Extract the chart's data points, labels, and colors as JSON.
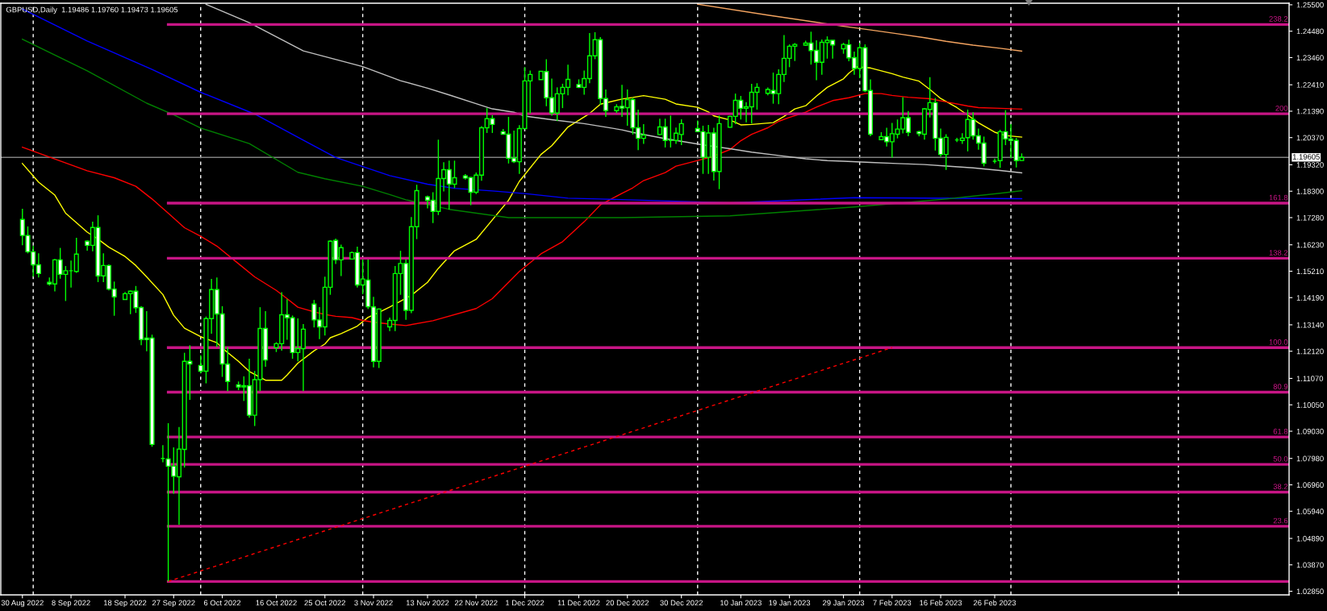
{
  "chart_data": {
    "type": "candlestick",
    "title": "GBPUSD,Daily  1.19486 1.19760 1.19473 1.19605",
    "xlim": [
      "2022-08-26T00:00",
      "2023-04-21T12:00"
    ],
    "ylim": [
      1.0271,
      1.2556
    ],
    "xticks": [
      {
        "value": "2022-08-30",
        "label": "30 Aug 2022"
      },
      {
        "value": "2022-09-08",
        "label": "8 Sep 2022"
      },
      {
        "value": "2022-09-18",
        "label": "18 Sep 2022"
      },
      {
        "value": "2022-09-27",
        "label": "27 Sep 2022"
      },
      {
        "value": "2022-10-06",
        "label": "6 Oct 2022"
      },
      {
        "value": "2022-10-16",
        "label": "16 Oct 2022"
      },
      {
        "value": "2022-10-25",
        "label": "25 Oct 2022"
      },
      {
        "value": "2022-11-03",
        "label": "3 Nov 2022"
      },
      {
        "value": "2022-11-13",
        "label": "13 Nov 2022"
      },
      {
        "value": "2022-11-22",
        "label": "22 Nov 2022"
      },
      {
        "value": "2022-12-01",
        "label": "1 Dec 2022"
      },
      {
        "value": "2022-12-11",
        "label": "11 Dec 2022"
      },
      {
        "value": "2022-12-20",
        "label": "20 Dec 2022"
      },
      {
        "value": "2022-12-30",
        "label": "30 Dec 2022"
      },
      {
        "value": "2023-01-10",
        "label": "10 Jan 2023"
      },
      {
        "value": "2023-01-19",
        "label": "19 Jan 2023"
      },
      {
        "value": "2023-01-29",
        "label": "29 Jan 2023"
      },
      {
        "value": "2023-02-07",
        "label": "7 Feb 2023"
      },
      {
        "value": "2023-02-16",
        "label": "16 Feb 2023"
      },
      {
        "value": "2023-02-26",
        "label": "26 Feb 2023"
      }
    ],
    "yticks": [
      {
        "value": 1.255,
        "label": "1.25500"
      },
      {
        "value": 1.2448,
        "label": "1.24480"
      },
      {
        "value": 1.2346,
        "label": "1.23460"
      },
      {
        "value": 1.2241,
        "label": "1.22410"
      },
      {
        "value": 1.2139,
        "label": "1.21390"
      },
      {
        "value": 1.2037,
        "label": "1.20370"
      },
      {
        "value": 1.1932,
        "label": "1.19320"
      },
      {
        "value": 1.183,
        "label": "1.18300"
      },
      {
        "value": 1.1728,
        "label": "1.17280"
      },
      {
        "value": 1.1623,
        "label": "1.16230"
      },
      {
        "value": 1.1521,
        "label": "1.15210"
      },
      {
        "value": 1.1419,
        "label": "1.14190"
      },
      {
        "value": 1.1314,
        "label": "1.13140"
      },
      {
        "value": 1.1212,
        "label": "1.12120"
      },
      {
        "value": 1.1107,
        "label": "1.11070"
      },
      {
        "value": 1.1005,
        "label": "1.10050"
      },
      {
        "value": 1.0903,
        "label": "1.09030"
      },
      {
        "value": 1.0798,
        "label": "1.07980"
      },
      {
        "value": 1.0696,
        "label": "1.06960"
      },
      {
        "value": 1.0594,
        "label": "1.05940"
      },
      {
        "value": 1.0489,
        "label": "1.04890"
      },
      {
        "value": 1.0387,
        "label": "1.03870"
      },
      {
        "value": 1.0285,
        "label": "1.02850"
      }
    ],
    "color": "#00ff00",
    "x": [
      "2022-08-30",
      "2022-08-31",
      "2022-09-01",
      "2022-09-02",
      "2022-09-04",
      "2022-09-05",
      "2022-09-06",
      "2022-09-07",
      "2022-09-08",
      "2022-09-09",
      "2022-09-11",
      "2022-09-12",
      "2022-09-13",
      "2022-09-14",
      "2022-09-15",
      "2022-09-16",
      "2022-09-18",
      "2022-09-19",
      "2022-09-20",
      "2022-09-21",
      "2022-09-22",
      "2022-09-23",
      "2022-09-25",
      "2022-09-26",
      "2022-09-27",
      "2022-09-28",
      "2022-09-29",
      "2022-09-30",
      "2022-10-02",
      "2022-10-03",
      "2022-10-04",
      "2022-10-05",
      "2022-10-06",
      "2022-10-07",
      "2022-10-09",
      "2022-10-10",
      "2022-10-11",
      "2022-10-12",
      "2022-10-13",
      "2022-10-14",
      "2022-10-16",
      "2022-10-17",
      "2022-10-18",
      "2022-10-19",
      "2022-10-20",
      "2022-10-21",
      "2022-10-23",
      "2022-10-24",
      "2022-10-25",
      "2022-10-26",
      "2022-10-27",
      "2022-10-28",
      "2022-10-30",
      "2022-10-31",
      "2022-11-01",
      "2022-11-02",
      "2022-11-03",
      "2022-11-04",
      "2022-11-06",
      "2022-11-07",
      "2022-11-08",
      "2022-11-09",
      "2022-11-10",
      "2022-11-11",
      "2022-11-13",
      "2022-11-14",
      "2022-11-15",
      "2022-11-16",
      "2022-11-17",
      "2022-11-18",
      "2022-11-20",
      "2022-11-21",
      "2022-11-22",
      "2022-11-23",
      "2022-11-24",
      "2022-11-25",
      "2022-11-27",
      "2022-11-28",
      "2022-11-29",
      "2022-11-30",
      "2022-12-01",
      "2022-12-02",
      "2022-12-04",
      "2022-12-05",
      "2022-12-06",
      "2022-12-07",
      "2022-12-08",
      "2022-12-09",
      "2022-12-11",
      "2022-12-12",
      "2022-12-13",
      "2022-12-14",
      "2022-12-15",
      "2022-12-16",
      "2022-12-18",
      "2022-12-19",
      "2022-12-20",
      "2022-12-21",
      "2022-12-22",
      "2022-12-23",
      "2022-12-26",
      "2022-12-27",
      "2022-12-28",
      "2022-12-29",
      "2022-12-30",
      "2023-01-02",
      "2023-01-03",
      "2023-01-04",
      "2023-01-05",
      "2023-01-06",
      "2023-01-08",
      "2023-01-09",
      "2023-01-10",
      "2023-01-11",
      "2023-01-12",
      "2023-01-13",
      "2023-01-15",
      "2023-01-16",
      "2023-01-17",
      "2023-01-18",
      "2023-01-19",
      "2023-01-20",
      "2023-01-22",
      "2023-01-23",
      "2023-01-24",
      "2023-01-25",
      "2023-01-26",
      "2023-01-27",
      "2023-01-29",
      "2023-01-30",
      "2023-01-31",
      "2023-02-01",
      "2023-02-02",
      "2023-02-03",
      "2023-02-05",
      "2023-02-06",
      "2023-02-07",
      "2023-02-08",
      "2023-02-09",
      "2023-02-10",
      "2023-02-12",
      "2023-02-13",
      "2023-02-14",
      "2023-02-15",
      "2023-02-16",
      "2023-02-17",
      "2023-02-19",
      "2023-02-20",
      "2023-02-21",
      "2023-02-22",
      "2023-02-23",
      "2023-02-24",
      "2023-02-26",
      "2023-02-27",
      "2023-02-28",
      "2023-03-01",
      "2023-03-02",
      "2023-03-03"
    ],
    "ohlc": [
      [
        1.1721,
        1.1762,
        1.1621,
        1.1659
      ],
      [
        1.1659,
        1.1694,
        1.159,
        1.1596
      ],
      [
        1.1596,
        1.1619,
        1.15,
        1.1546
      ],
      [
        1.1546,
        1.159,
        1.1497,
        1.1512
      ],
      [
        1.1478,
        1.1497,
        1.1466,
        1.1472
      ],
      [
        1.1472,
        1.1568,
        1.1443,
        1.1565
      ],
      [
        1.1565,
        1.1611,
        1.1492,
        1.1509
      ],
      [
        1.1509,
        1.1541,
        1.1406,
        1.1523
      ],
      [
        1.1523,
        1.1562,
        1.1458,
        1.1523
      ],
      [
        1.152,
        1.165,
        1.1515,
        1.1587
      ],
      [
        1.1637,
        1.164,
        1.16,
        1.1621
      ],
      [
        1.1621,
        1.1712,
        1.1598,
        1.169
      ],
      [
        1.169,
        1.1737,
        1.1479,
        1.1503
      ],
      [
        1.1503,
        1.159,
        1.1479,
        1.1543
      ],
      [
        1.1543,
        1.1547,
        1.1447,
        1.1452
      ],
      [
        1.1452,
        1.1481,
        1.1349,
        1.1422
      ],
      [
        1.1412,
        1.1441,
        1.1412,
        1.1434
      ],
      [
        1.1434,
        1.1446,
        1.1355,
        1.1444
      ],
      [
        1.1444,
        1.1464,
        1.136,
        1.138
      ],
      [
        1.1381,
        1.1386,
        1.1235,
        1.1257
      ],
      [
        1.1263,
        1.1367,
        1.1212,
        1.1257
      ],
      [
        1.1263,
        1.1276,
        1.0843,
        1.0852
      ],
      [
        1.0798,
        1.0849,
        1.0783,
        1.0798
      ],
      [
        1.0796,
        1.0934,
        1.0323,
        1.0768
      ],
      [
        1.0768,
        1.0841,
        1.0662,
        1.0729
      ],
      [
        1.0727,
        1.0919,
        1.0542,
        1.0834
      ],
      [
        1.0833,
        1.1206,
        1.0763,
        1.1173
      ],
      [
        1.1173,
        1.1235,
        1.1024,
        1.1163
      ],
      [
        1.1157,
        1.1196,
        1.1126,
        1.1135
      ],
      [
        1.1135,
        1.1346,
        1.1088,
        1.1338
      ],
      [
        1.1338,
        1.1491,
        1.128,
        1.145
      ],
      [
        1.145,
        1.1497,
        1.1228,
        1.1356
      ],
      [
        1.1356,
        1.1386,
        1.1113,
        1.1163
      ],
      [
        1.1162,
        1.1228,
        1.1058,
        1.1095
      ],
      [
        1.1082,
        1.1095,
        1.1062,
        1.1074
      ],
      [
        1.1074,
        1.1115,
        1.102,
        1.1079
      ],
      [
        1.1079,
        1.1183,
        1.0955,
        1.0965
      ],
      [
        1.0965,
        1.1136,
        1.0923,
        1.1102
      ],
      [
        1.1102,
        1.1382,
        1.1058,
        1.13
      ],
      [
        1.13,
        1.1367,
        1.1152,
        1.1178
      ],
      [
        1.1226,
        1.1247,
        1.1209,
        1.1241
      ],
      [
        1.1241,
        1.144,
        1.1214,
        1.1353
      ],
      [
        1.1353,
        1.1413,
        1.1256,
        1.1341
      ],
      [
        1.1341,
        1.135,
        1.1183,
        1.1207
      ],
      [
        1.1207,
        1.1339,
        1.1173,
        1.1222
      ],
      [
        1.1222,
        1.1317,
        1.1058,
        1.1297
      ],
      [
        1.1394,
        1.141,
        1.1304,
        1.1333
      ],
      [
        1.1333,
        1.1382,
        1.1259,
        1.1306
      ],
      [
        1.1306,
        1.15,
        1.1273,
        1.1459
      ],
      [
        1.1459,
        1.164,
        1.143,
        1.1637
      ],
      [
        1.164,
        1.1647,
        1.1549,
        1.1565
      ],
      [
        1.1565,
        1.1624,
        1.1502,
        1.1612
      ],
      [
        1.1568,
        1.1597,
        1.1566,
        1.1593
      ],
      [
        1.1593,
        1.1616,
        1.1458,
        1.1468
      ],
      [
        1.1468,
        1.1567,
        1.1432,
        1.1491
      ],
      [
        1.1487,
        1.1566,
        1.1375,
        1.1384
      ],
      [
        1.1383,
        1.1422,
        1.115,
        1.1173
      ],
      [
        1.1173,
        1.1377,
        1.1147,
        1.1375
      ],
      [
        1.1306,
        1.1342,
        1.129,
        1.1331
      ],
      [
        1.1331,
        1.1541,
        1.129,
        1.1512
      ],
      [
        1.1512,
        1.16,
        1.143,
        1.1551
      ],
      [
        1.1551,
        1.1567,
        1.1333,
        1.137
      ],
      [
        1.137,
        1.173,
        1.1359,
        1.1693
      ],
      [
        1.1693,
        1.1855,
        1.1645,
        1.1832
      ],
      [
        1.1808,
        1.1813,
        1.1764,
        1.1795
      ],
      [
        1.1795,
        1.1826,
        1.1707,
        1.1752
      ],
      [
        1.1752,
        1.2029,
        1.1738,
        1.1879
      ],
      [
        1.1879,
        1.1942,
        1.1829,
        1.1913
      ],
      [
        1.1913,
        1.1948,
        1.1759,
        1.1857
      ],
      [
        1.1857,
        1.1948,
        1.1842,
        1.1882
      ],
      [
        1.1889,
        1.1896,
        1.1875,
        1.1881
      ],
      [
        1.1883,
        1.1885,
        1.1776,
        1.1826
      ],
      [
        1.1826,
        1.1902,
        1.1819,
        1.1892
      ],
      [
        1.1892,
        1.2081,
        1.187,
        1.2075
      ],
      [
        1.2075,
        1.2151,
        1.2055,
        1.211
      ],
      [
        1.211,
        1.2124,
        1.2055,
        1.2088
      ],
      [
        1.206,
        1.207,
        1.2049,
        1.205
      ],
      [
        1.205,
        1.2117,
        1.1937,
        1.1957
      ],
      [
        1.1958,
        1.2064,
        1.1939,
        1.1944
      ],
      [
        1.1944,
        1.2085,
        1.1897,
        1.2072
      ],
      [
        1.2072,
        1.2309,
        1.207,
        1.2256
      ],
      [
        1.2256,
        1.2296,
        1.213,
        1.2281
      ],
      [
        1.2261,
        1.2293,
        1.2261,
        1.2293
      ],
      [
        1.2292,
        1.234,
        1.2158,
        1.2191
      ],
      [
        1.2191,
        1.2265,
        1.2122,
        1.2132
      ],
      [
        1.2132,
        1.2231,
        1.2101,
        1.2206
      ],
      [
        1.2206,
        1.2245,
        1.2151,
        1.2231
      ],
      [
        1.2231,
        1.2319,
        1.22,
        1.2262
      ],
      [
        1.2242,
        1.2262,
        1.2228,
        1.2231
      ],
      [
        1.2231,
        1.2296,
        1.2203,
        1.2265
      ],
      [
        1.2265,
        1.2441,
        1.2247,
        1.2353
      ],
      [
        1.2353,
        1.2444,
        1.234,
        1.2415
      ],
      [
        1.2415,
        1.2425,
        1.2164,
        1.2188
      ],
      [
        1.2188,
        1.2223,
        1.2117,
        1.2141
      ],
      [
        1.2141,
        1.2166,
        1.2132,
        1.2156
      ],
      [
        1.2158,
        1.2241,
        1.2117,
        1.2151
      ],
      [
        1.2153,
        1.2223,
        1.2083,
        1.2184
      ],
      [
        1.2184,
        1.219,
        1.2049,
        1.2075
      ],
      [
        1.2075,
        1.2145,
        1.1989,
        1.2034
      ],
      [
        1.2034,
        1.2089,
        1.2013,
        1.2047
      ],
      [
        1.2049,
        1.211,
        1.2047,
        1.2078
      ],
      [
        1.2078,
        1.211,
        1.1999,
        1.2026
      ],
      [
        1.2026,
        1.2122,
        1.1999,
        1.2026
      ],
      [
        1.2026,
        1.2076,
        1.2013,
        1.2054
      ],
      [
        1.2049,
        1.2108,
        1.2008,
        1.2091
      ],
      [
        1.2072,
        1.2103,
        1.2058,
        1.206
      ],
      [
        1.206,
        1.2083,
        1.1897,
        1.1961
      ],
      [
        1.1961,
        1.2086,
        1.1897,
        1.2055
      ],
      [
        1.2055,
        1.2075,
        1.1871,
        1.1906
      ],
      [
        1.1906,
        1.2122,
        1.1838,
        1.2091
      ],
      [
        1.2077,
        1.2122,
        1.2075,
        1.2119
      ],
      [
        1.2119,
        1.2207,
        1.2089,
        1.2181
      ],
      [
        1.2181,
        1.2198,
        1.2107,
        1.215
      ],
      [
        1.215,
        1.2174,
        1.2096,
        1.2156
      ],
      [
        1.2156,
        1.2245,
        1.2091,
        1.2212
      ],
      [
        1.2212,
        1.2247,
        1.2145,
        1.2231
      ],
      [
        1.2208,
        1.2231,
        1.22,
        1.2223
      ],
      [
        1.2219,
        1.2288,
        1.2168,
        1.2207
      ],
      [
        1.2207,
        1.2301,
        1.2166,
        1.2281
      ],
      [
        1.2281,
        1.2433,
        1.2252,
        1.2343
      ],
      [
        1.2343,
        1.2397,
        1.2309,
        1.239
      ],
      [
        1.239,
        1.2402,
        1.2333,
        1.2397
      ],
      [
        1.2394,
        1.2411,
        1.2392,
        1.2402
      ],
      [
        1.2402,
        1.2446,
        1.2319,
        1.2373
      ],
      [
        1.2374,
        1.2413,
        1.2259,
        1.2328
      ],
      [
        1.2328,
        1.2416,
        1.228,
        1.2405
      ],
      [
        1.2404,
        1.2428,
        1.2342,
        1.2413
      ],
      [
        1.2413,
        1.2413,
        1.2342,
        1.2395
      ],
      [
        1.238,
        1.2403,
        1.2361,
        1.2397
      ],
      [
        1.2396,
        1.2415,
        1.2332,
        1.2345
      ],
      [
        1.2346,
        1.2369,
        1.228,
        1.2304
      ],
      [
        1.2304,
        1.2403,
        1.2267,
        1.2384
      ],
      [
        1.2384,
        1.2397,
        1.2213,
        1.2218
      ],
      [
        1.2219,
        1.2262,
        1.2042,
        1.205
      ],
      [
        1.2029,
        1.2058,
        1.2028,
        1.2041
      ],
      [
        1.2041,
        1.2075,
        1.2003,
        1.2021
      ],
      [
        1.2021,
        1.2094,
        1.196,
        1.2052
      ],
      [
        1.205,
        1.2107,
        1.2034,
        1.207
      ],
      [
        1.207,
        1.2193,
        1.2053,
        1.2114
      ],
      [
        1.2114,
        1.214,
        1.2042,
        1.2057
      ],
      [
        1.206,
        1.2063,
        1.2042,
        1.2052
      ],
      [
        1.205,
        1.2151,
        1.2029,
        1.2148
      ],
      [
        1.2146,
        1.227,
        1.2115,
        1.2172
      ],
      [
        1.2172,
        1.219,
        1.1987,
        1.2034
      ],
      [
        1.2035,
        1.2072,
        1.1963,
        1.1972
      ],
      [
        1.1972,
        1.205,
        1.1912,
        1.2038
      ],
      [
        1.2028,
        1.2036,
        1.202,
        1.2028
      ],
      [
        1.2026,
        1.2054,
        1.2013,
        1.2035
      ],
      [
        1.2037,
        1.2145,
        1.1984,
        1.2107
      ],
      [
        1.2107,
        1.2135,
        1.2029,
        1.2044
      ],
      [
        1.2044,
        1.2072,
        1.199,
        1.2016
      ],
      [
        1.2016,
        1.2041,
        1.1926,
        1.1938
      ],
      [
        1.1946,
        1.1956,
        1.1937,
        1.1946
      ],
      [
        1.1948,
        1.2067,
        1.192,
        1.206
      ],
      [
        1.206,
        1.2143,
        1.2008,
        1.2032
      ],
      [
        1.2032,
        1.2089,
        1.1958,
        1.2026
      ],
      [
        1.2026,
        1.2036,
        1.1922,
        1.1948
      ],
      [
        1.19486,
        1.1976,
        1.19473,
        1.19605
      ]
    ],
    "colors": [
      "#ffffff",
      "#ffffff",
      "#ffffff",
      "#ffffff",
      "#ffffff",
      "#000000",
      "#ffffff",
      "#000000",
      "#00ff00",
      "#000000",
      "#ffffff",
      "#000000",
      "#ffffff",
      "#000000",
      "#ffffff",
      "#ffffff",
      "#000000",
      "#000000",
      "#ffffff",
      "#ffffff",
      "#ffffff",
      "#ffffff",
      "#00ff00",
      "#ffffff",
      "#ffffff",
      "#000000",
      "#000000",
      "#ffffff",
      "#ffffff",
      "#000000",
      "#000000",
      "#ffffff",
      "#ffffff",
      "#ffffff",
      "#ffffff",
      "#000000",
      "#ffffff",
      "#000000",
      "#000000",
      "#ffffff",
      "#000000",
      "#000000",
      "#ffffff",
      "#ffffff",
      "#000000",
      "#000000",
      "#ffffff",
      "#ffffff",
      "#000000",
      "#000000",
      "#ffffff",
      "#000000",
      "#000000",
      "#ffffff",
      "#000000",
      "#ffffff",
      "#ffffff",
      "#000000",
      "#000000",
      "#000000",
      "#000000",
      "#ffffff",
      "#000000",
      "#000000",
      "#ffffff",
      "#ffffff",
      "#000000",
      "#000000",
      "#ffffff",
      "#000000",
      "#ffffff",
      "#ffffff",
      "#000000",
      "#000000",
      "#000000",
      "#ffffff",
      "#ffffff",
      "#ffffff",
      "#ffffff",
      "#000000",
      "#000000",
      "#000000",
      "#000000",
      "#ffffff",
      "#ffffff",
      "#000000",
      "#000000",
      "#000000",
      "#ffffff",
      "#000000",
      "#000000",
      "#000000",
      "#ffffff",
      "#ffffff",
      "#000000",
      "#ffffff",
      "#000000",
      "#ffffff",
      "#ffffff",
      "#000000",
      "#000000",
      "#ffffff",
      "#00ff00",
      "#000000",
      "#000000",
      "#ffffff",
      "#ffffff",
      "#000000",
      "#ffffff",
      "#000000",
      "#000000",
      "#000000",
      "#ffffff",
      "#000000",
      "#000000",
      "#000000",
      "#000000",
      "#ffffff",
      "#000000",
      "#000000",
      "#000000",
      "#000000",
      "#000000",
      "#ffffff",
      "#ffffff",
      "#000000",
      "#000000",
      "#ffffff",
      "#000000",
      "#ffffff",
      "#ffffff",
      "#000000",
      "#ffffff",
      "#ffffff",
      "#000000",
      "#ffffff",
      "#000000",
      "#000000",
      "#000000",
      "#ffffff",
      "#ffffff",
      "#000000",
      "#000000",
      "#ffffff",
      "#ffffff",
      "#000000",
      "#00ff00",
      "#000000",
      "#000000",
      "#ffffff",
      "#ffffff",
      "#ffffff",
      "#00ff00",
      "#000000",
      "#ffffff",
      "#ffffff",
      "#ffffff",
      "#000000"
    ],
    "series": [
      {
        "type": "line",
        "color": "#ffff00",
        "line_style": "solid",
        "x": [
          "2022-08-30",
          "2022-09-02",
          "2022-09-05",
          "2022-09-07",
          "2022-09-11",
          "2022-09-13",
          "2022-09-15",
          "2022-09-18",
          "2022-09-20",
          "2022-09-22",
          "2022-09-25",
          "2022-09-27",
          "2022-09-29",
          "2022-10-02",
          "2022-10-05",
          "2022-10-06",
          "2022-10-09",
          "2022-10-11",
          "2022-10-14",
          "2022-10-17",
          "2022-10-18",
          "2022-10-20",
          "2022-10-23",
          "2022-10-25",
          "2022-10-26",
          "2022-10-28",
          "2022-10-31",
          "2022-11-02",
          "2022-11-03",
          "2022-11-06",
          "2022-11-08",
          "2022-11-10",
          "2022-11-13",
          "2022-11-15",
          "2022-11-18",
          "2022-11-22",
          "2022-11-24",
          "2022-11-28",
          "2022-11-30",
          "2022-12-04",
          "2022-12-06",
          "2022-12-09",
          "2022-12-13",
          "2022-12-15",
          "2022-12-19",
          "2022-12-21",
          "2022-12-23",
          "2022-12-27",
          "2022-12-29",
          "2023-01-02",
          "2023-01-04",
          "2023-01-05",
          "2023-01-08",
          "2023-01-10",
          "2023-01-12",
          "2023-01-16",
          "2023-01-18",
          "2023-01-20",
          "2023-01-22",
          "2023-01-24",
          "2023-01-26",
          "2023-01-29",
          "2023-01-30",
          "2023-01-31T12:00",
          "2023-02-03",
          "2023-02-07",
          "2023-02-09",
          "2023-02-12",
          "2023-02-14",
          "2023-02-16",
          "2023-02-19",
          "2023-02-21",
          "2023-02-23",
          "2023-02-26",
          "2023-02-28",
          "2023-03-03"
        ],
        "values": [
          1.1937,
          1.1865,
          1.1815,
          1.1745,
          1.1672,
          1.1645,
          1.1614,
          1.1578,
          1.1543,
          1.1499,
          1.1431,
          1.1351,
          1.1301,
          1.1268,
          1.1245,
          1.1224,
          1.1173,
          1.1134,
          1.11,
          1.11,
          1.112,
          1.1166,
          1.1214,
          1.124,
          1.1264,
          1.128,
          1.1309,
          1.1343,
          1.1352,
          1.1383,
          1.1405,
          1.1428,
          1.1478,
          1.1532,
          1.16,
          1.1644,
          1.1694,
          1.1795,
          1.1868,
          1.1972,
          1.2006,
          1.2078,
          1.213,
          1.2166,
          1.2186,
          1.2192,
          1.2199,
          1.2185,
          1.2167,
          1.2154,
          1.2136,
          1.2121,
          1.2105,
          1.2086,
          1.2088,
          1.2095,
          1.2119,
          1.2148,
          1.216,
          1.2197,
          1.2231,
          1.2264,
          1.2286,
          1.231,
          1.2306,
          1.2284,
          1.2271,
          1.2255,
          1.2223,
          1.2188,
          1.2153,
          1.2124,
          1.2094,
          1.2058,
          1.2045,
          1.2039
        ]
      },
      {
        "type": "line",
        "color": "#ff0000",
        "line_style": "solid",
        "x": [
          "2022-08-30",
          "2022-09-11",
          "2022-09-16",
          "2022-09-20",
          "2022-09-23",
          "2022-09-26",
          "2022-09-29",
          "2022-10-02",
          "2022-10-05",
          "2022-10-09",
          "2022-10-12",
          "2022-10-16",
          "2022-10-18",
          "2022-10-20",
          "2022-10-23",
          "2022-10-25",
          "2022-10-27",
          "2022-10-30",
          "2022-11-01",
          "2022-11-03",
          "2022-11-06",
          "2022-11-09",
          "2022-11-14",
          "2022-11-22",
          "2022-11-25",
          "2022-11-30",
          "2022-12-04",
          "2022-12-08",
          "2022-12-12",
          "2022-12-15",
          "2022-12-19",
          "2022-12-21",
          "2022-12-23",
          "2022-12-27",
          "2022-12-29",
          "2023-01-03",
          "2023-01-04T12:00",
          "2023-01-08",
          "2023-01-10",
          "2023-01-12",
          "2023-01-15",
          "2023-01-17",
          "2023-01-19",
          "2023-01-22",
          "2023-01-24",
          "2023-01-27",
          "2023-01-30",
          "2023-02-02",
          "2023-02-05",
          "2023-02-07",
          "2023-02-10",
          "2023-02-14",
          "2023-02-17",
          "2023-02-21",
          "2023-02-23",
          "2023-02-27",
          "2023-03-03"
        ],
        "values": [
          1.2,
          1.1909,
          1.1882,
          1.1849,
          1.18,
          1.1745,
          1.1689,
          1.1656,
          1.1618,
          1.155,
          1.1499,
          1.1447,
          1.1415,
          1.1382,
          1.1364,
          1.1354,
          1.1347,
          1.1342,
          1.1331,
          1.1324,
          1.1317,
          1.1311,
          1.133,
          1.1377,
          1.1415,
          1.152,
          1.1588,
          1.1635,
          1.1712,
          1.1777,
          1.1822,
          1.1843,
          1.1871,
          1.1902,
          1.1927,
          1.1954,
          1.1962,
          1.1991,
          1.2025,
          1.205,
          1.2075,
          1.21,
          1.2115,
          1.2135,
          1.2155,
          1.218,
          1.2191,
          1.2207,
          1.2207,
          1.22,
          1.2193,
          1.2187,
          1.2175,
          1.2159,
          1.2153,
          1.215,
          1.2147
        ]
      },
      {
        "type": "line",
        "color": "#c0c0c0",
        "line_style": "solid",
        "x": [
          "2022-10-03",
          "2022-10-11",
          "2022-10-21",
          "2022-11-01",
          "2022-11-08",
          "2022-11-13",
          "2022-11-17",
          "2022-11-22",
          "2022-11-25",
          "2022-11-29",
          "2022-12-01",
          "2022-12-06",
          "2022-12-12",
          "2022-12-19",
          "2022-12-21",
          "2022-12-27",
          "2023-01-03",
          "2023-01-08",
          "2023-01-12",
          "2023-01-17",
          "2023-01-22",
          "2023-01-26",
          "2023-01-29",
          "2023-02-03",
          "2023-02-08",
          "2023-02-13",
          "2023-02-17",
          "2023-02-22",
          "2023-02-27",
          "2023-03-03"
        ],
        "values": [
          1.2552,
          1.2481,
          1.2372,
          1.2311,
          1.2257,
          1.2228,
          1.2202,
          1.2168,
          1.2148,
          1.2135,
          1.212,
          1.2106,
          1.2091,
          1.2067,
          1.2057,
          1.2033,
          1.2009,
          1.1994,
          1.1981,
          1.1968,
          1.1955,
          1.1948,
          1.1946,
          1.1941,
          1.1937,
          1.1933,
          1.1927,
          1.192,
          1.191,
          1.1901
        ]
      },
      {
        "type": "line",
        "color": "#0000ff",
        "line_style": "solid",
        "x": [
          "2022-08-30",
          "2022-09-11",
          "2022-09-23",
          "2022-10-02",
          "2022-10-12",
          "2022-10-21",
          "2022-10-27",
          "2022-11-01",
          "2022-11-06",
          "2022-11-13",
          "2022-11-18",
          "2022-11-25",
          "2022-12-01",
          "2022-12-09",
          "2022-12-15",
          "2023-01-08",
          "2023-01-31",
          "2023-03-03"
        ],
        "values": [
          1.2534,
          1.241,
          1.23,
          1.2212,
          1.2128,
          1.2027,
          1.196,
          1.1925,
          1.189,
          1.1857,
          1.1841,
          1.1831,
          1.1821,
          1.1803,
          1.18,
          1.1785,
          1.1805,
          1.1801
        ]
      },
      {
        "type": "line",
        "color": "#008000",
        "line_style": "solid",
        "x": [
          "2022-08-30",
          "2022-09-11",
          "2022-09-22",
          "2022-09-27",
          "2022-10-02",
          "2022-10-11",
          "2022-10-20",
          "2022-10-25",
          "2022-11-01",
          "2022-11-06",
          "2022-11-09",
          "2022-11-17",
          "2022-11-28",
          "2022-12-19",
          "2023-01-08",
          "2023-01-31",
          "2023-02-17",
          "2023-02-27",
          "2023-03-03"
        ],
        "values": [
          1.2417,
          1.2295,
          1.217,
          1.2125,
          1.2074,
          1.2014,
          1.1903,
          1.1878,
          1.1849,
          1.1817,
          1.1797,
          1.176,
          1.1728,
          1.1728,
          1.1735,
          1.1769,
          1.18,
          1.1822,
          1.1832
        ]
      },
      {
        "type": "line",
        "color": "#f4a460",
        "line_style": "solid",
        "x": [
          "2023-01-02",
          "2023-01-15",
          "2023-01-29",
          "2023-02-03",
          "2023-02-08",
          "2023-02-13",
          "2023-02-17",
          "2023-02-22",
          "2023-02-27",
          "2023-03-03"
        ],
        "values": [
          1.2552,
          1.251,
          1.2467,
          1.2453,
          1.2438,
          1.2423,
          1.2409,
          1.2394,
          1.2382,
          1.2371
        ]
      },
      {
        "type": "line",
        "name": "238.2",
        "color": "#c71585",
        "line_style": "solid",
        "x": [
          "2022-09-26",
          "2023-04-21T12:00"
        ],
        "values": [
          1.2474,
          1.2474
        ]
      },
      {
        "type": "line",
        "name": "200",
        "color": "#c71585",
        "line_style": "solid",
        "x": [
          "2022-09-26",
          "2023-04-21T12:00"
        ],
        "values": [
          1.2129,
          1.2129
        ]
      },
      {
        "type": "line",
        "name": "161.8",
        "color": "#c71585",
        "line_style": "solid",
        "x": [
          "2022-09-26",
          "2023-04-21T12:00"
        ],
        "values": [
          1.1784,
          1.1784
        ]
      },
      {
        "type": "line",
        "name": "138.2",
        "color": "#c71585",
        "line_style": "solid",
        "x": [
          "2022-09-26",
          "2023-04-21T12:00"
        ],
        "values": [
          1.1571,
          1.1571
        ]
      },
      {
        "type": "line",
        "name": "100.0",
        "color": "#c71585",
        "line_style": "solid",
        "x": [
          "2022-09-26",
          "2023-04-21T12:00"
        ],
        "values": [
          1.1226,
          1.1226
        ]
      },
      {
        "type": "line",
        "name": "80.9",
        "color": "#c71585",
        "line_style": "solid",
        "x": [
          "2022-09-26",
          "2023-04-21T12:00"
        ],
        "values": [
          1.1054,
          1.1054
        ]
      },
      {
        "type": "line",
        "name": "61.8",
        "color": "#c71585",
        "line_style": "solid",
        "x": [
          "2022-09-26",
          "2023-04-21T12:00"
        ],
        "values": [
          1.0881,
          1.0881
        ]
      },
      {
        "type": "line",
        "name": "50.0",
        "color": "#c71585",
        "line_style": "solid",
        "x": [
          "2022-09-26",
          "2023-04-21T12:00"
        ],
        "values": [
          1.0775,
          1.0775
        ]
      },
      {
        "type": "line",
        "name": "38.2",
        "color": "#c71585",
        "line_style": "solid",
        "x": [
          "2022-09-26",
          "2023-04-21T12:00"
        ],
        "values": [
          1.0668,
          1.0668
        ]
      },
      {
        "type": "line",
        "name": "23.6",
        "color": "#c71585",
        "line_style": "solid",
        "x": [
          "2022-09-26",
          "2023-04-21T12:00"
        ],
        "values": [
          1.0536,
          1.0536
        ]
      },
      {
        "type": "line",
        "color": "#c71585",
        "line_style": "solid",
        "x": [
          "2022-09-26",
          "2023-04-21T12:00"
        ],
        "values": [
          1.0323,
          1.0323
        ]
      },
      {
        "type": "line",
        "color": "#ff0000",
        "line_style": "dashed",
        "x": [
          "2022-09-26",
          "2023-02-07"
        ],
        "values": [
          1.0323,
          1.1226
        ]
      }
    ],
    "ref_lines": [
      {
        "axis": "x",
        "value": "2022-09-01",
        "color": "#ffffff",
        "line_style": "dashed"
      },
      {
        "axis": "x",
        "value": "2022-10-02",
        "color": "#ffffff",
        "line_style": "dashed"
      },
      {
        "axis": "x",
        "value": "2022-11-01",
        "color": "#ffffff",
        "line_style": "dashed"
      },
      {
        "axis": "x",
        "value": "2022-12-01",
        "color": "#ffffff",
        "line_style": "dashed"
      },
      {
        "axis": "x",
        "value": "2023-01-02",
        "color": "#ffffff",
        "line_style": "dashed"
      },
      {
        "axis": "x",
        "value": "2023-02-01",
        "color": "#ffffff",
        "line_style": "dashed"
      },
      {
        "axis": "x",
        "value": "2023-03-01",
        "color": "#ffffff",
        "line_style": "dashed"
      },
      {
        "axis": "x",
        "value": "2023-04-01",
        "color": "#ffffff",
        "line_style": "dashed"
      },
      {
        "axis": "y",
        "value": 1.19605,
        "label": "1.19605",
        "color": "#808080",
        "line_style": "solid"
      }
    ]
  }
}
